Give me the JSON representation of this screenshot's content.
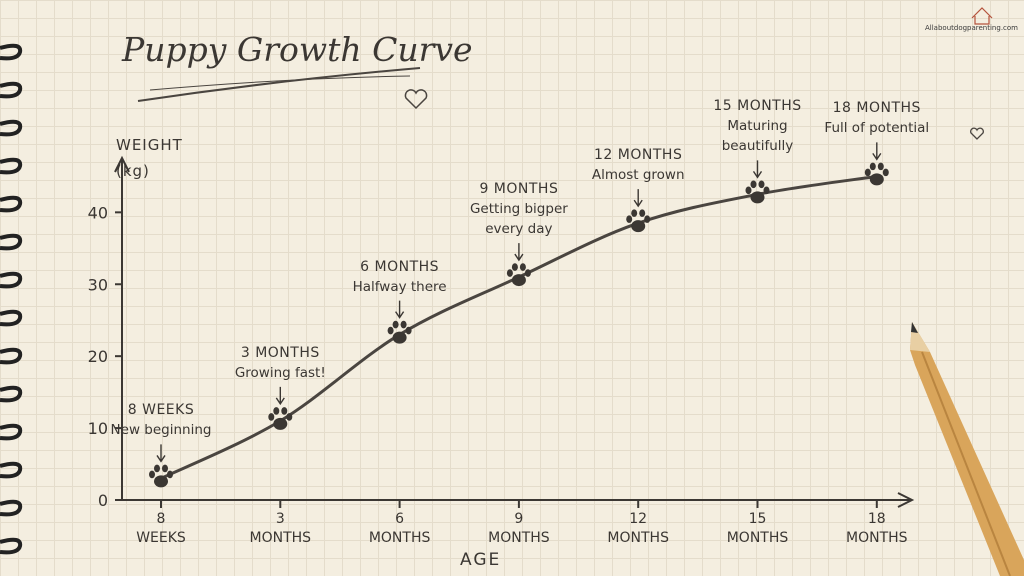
{
  "chart_data": {
    "type": "line",
    "title": "Puppy Growth Curve",
    "y_label": "WEIGHT\n(kg)",
    "x_label": "AGE",
    "categories": [
      "8\nWEEKS",
      "3\nMONTHS",
      "6\nMONTHS",
      "9\nMONTHS",
      "12\nMONTHS",
      "15\nMONTHS",
      "18\nMONTHS"
    ],
    "values": [
      3,
      11,
      23,
      31,
      38.5,
      42.5,
      45
    ],
    "color": "#4a4540",
    "ylim": [
      0,
      47
    ],
    "yticks": [
      0,
      10,
      20,
      30,
      40
    ],
    "annotations": [
      {
        "label": "8 WEEKS",
        "text": "New beginning"
      },
      {
        "label": "3 MONTHS",
        "text": "Growing fast!"
      },
      {
        "label": "6 MONTHS",
        "text": "Halfway there"
      },
      {
        "label": "9 MONTHS",
        "text": "Getting bigper\nevery day"
      },
      {
        "label": "12 MONTHS",
        "text": "Almost grown"
      },
      {
        "label": "15 MONTHS",
        "text": "Maturing\nbeautifully"
      },
      {
        "label": "18 MONTHS",
        "text": "Full of potential"
      }
    ],
    "watermark": "Allaboutdogparenting.com"
  }
}
